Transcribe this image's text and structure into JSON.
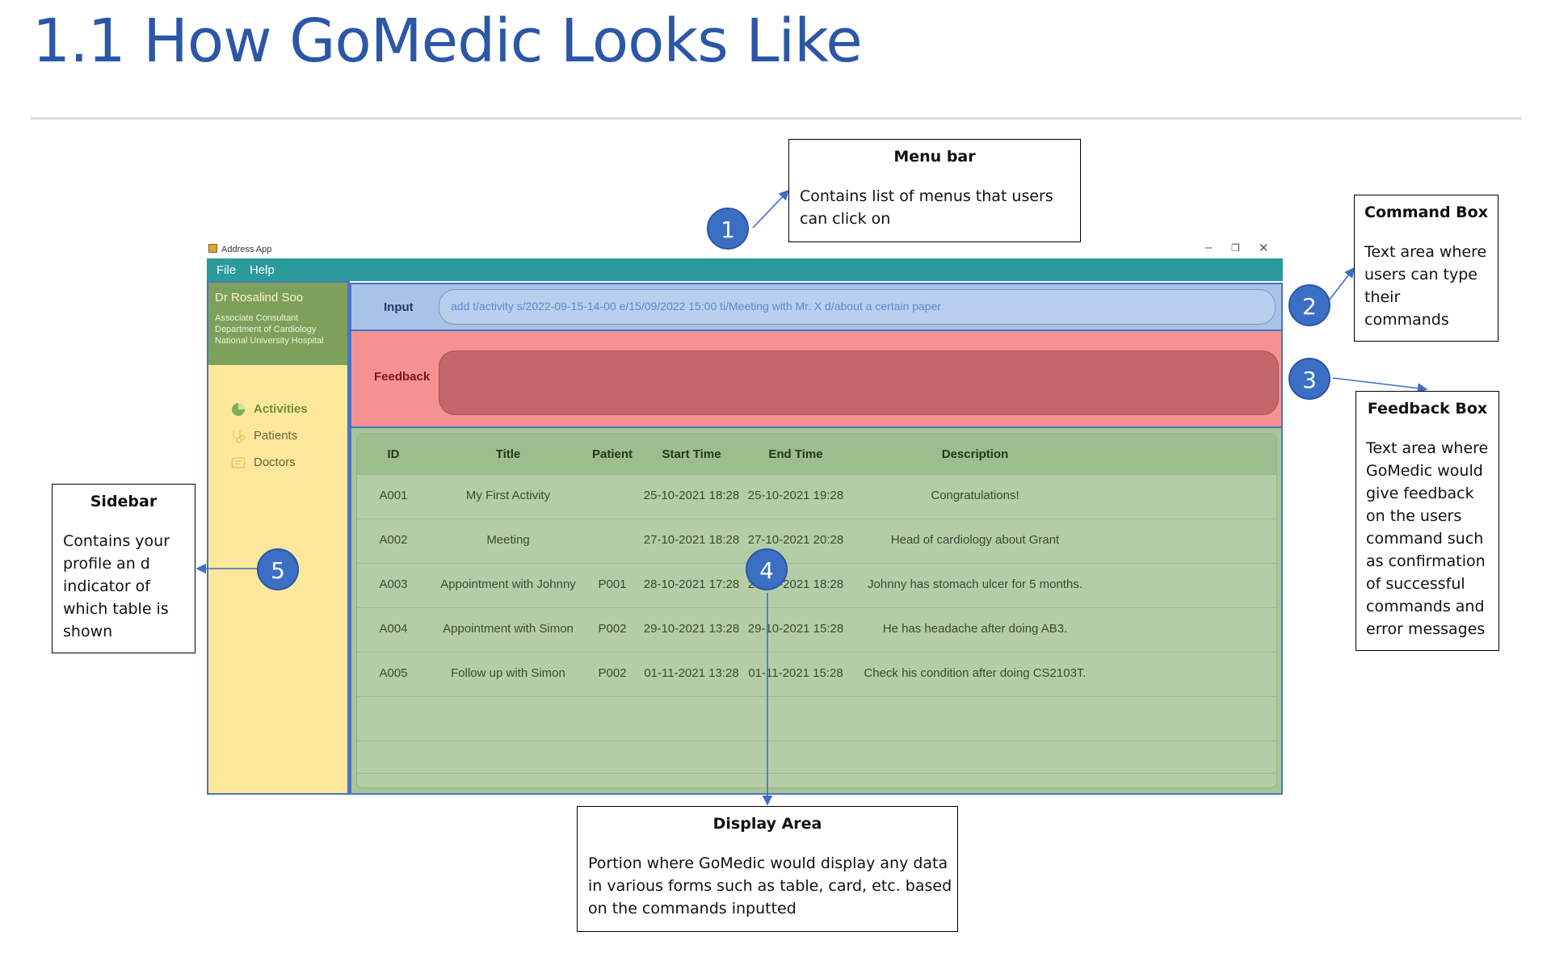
{
  "page": {
    "heading": "1.1 How GoMedic Looks Like"
  },
  "app": {
    "window_title": "Address App",
    "window_controls": {
      "minimize": "–",
      "maximize": "❐",
      "close": "✕"
    },
    "menu": [
      "File",
      "Help"
    ],
    "profile": {
      "name": "Dr Rosalind Soo",
      "lines": [
        "Associate Consultant",
        "Department of Cardiology",
        "National University Hospital"
      ]
    },
    "sidebar_items": [
      {
        "label": "Activities",
        "icon": "pie-chart-icon",
        "active": true
      },
      {
        "label": "Patients",
        "icon": "stethoscope-icon",
        "active": false
      },
      {
        "label": "Doctors",
        "icon": "id-card-icon",
        "active": false
      }
    ],
    "input_label": "Input",
    "input_value": "add t/activity s/2022-09-15-14-00 e/15/09/2022 15:00 ti/Meeting with Mr. X d/about a certain paper",
    "feedback_label": "Feedback",
    "feedback_text": "",
    "table": {
      "columns": [
        "ID",
        "Title",
        "Patient",
        "Start Time",
        "End Time",
        "Description"
      ],
      "rows": [
        [
          "A001",
          "My First Activity",
          "",
          "25-10-2021 18:28",
          "25-10-2021 19:28",
          "Congratulations!"
        ],
        [
          "A002",
          "Meeting",
          "",
          "27-10-2021 18:28",
          "27-10-2021 20:28",
          "Head of cardiology about Grant"
        ],
        [
          "A003",
          "Appointment with Johnny",
          "P001",
          "28-10-2021 17:28",
          "28-10-2021 18:28",
          "Johnny has stomach ulcer for 5 months."
        ],
        [
          "A004",
          "Appointment with Simon",
          "P002",
          "29-10-2021 13:28",
          "29-10-2021 15:28",
          "He has headache after doing AB3."
        ],
        [
          "A005",
          "Follow up with Simon",
          "P002",
          "01-11-2021 13:28",
          "01-11-2021 15:28",
          "Check his condition after doing CS2103T."
        ]
      ]
    }
  },
  "callouts": {
    "menu_bar": {
      "number": "1",
      "title": "Menu bar",
      "body": [
        "Contains list of menus that users",
        "can click on"
      ]
    },
    "command_box": {
      "number": "2",
      "title": "Command Box",
      "body": [
        "Text area where",
        "users can type",
        "their",
        "commands"
      ]
    },
    "feedback_box": {
      "number": "3",
      "title": "Feedback Box",
      "body": [
        "Text area where",
        "GoMedic would",
        "give feedback",
        "on the users",
        "command such",
        "as confirmation",
        "of successful",
        "commands and",
        "error messages"
      ]
    },
    "display_area": {
      "number": "4",
      "title": "Display Area",
      "body": [
        "Portion where GoMedic would display any data",
        "in various forms such as table, card, etc. based",
        "on the commands inputted"
      ]
    },
    "sidebar": {
      "number": "5",
      "title": "Sidebar",
      "body": [
        "Contains your",
        "profile an d",
        "indicator of",
        "which table is",
        "shown"
      ]
    }
  }
}
